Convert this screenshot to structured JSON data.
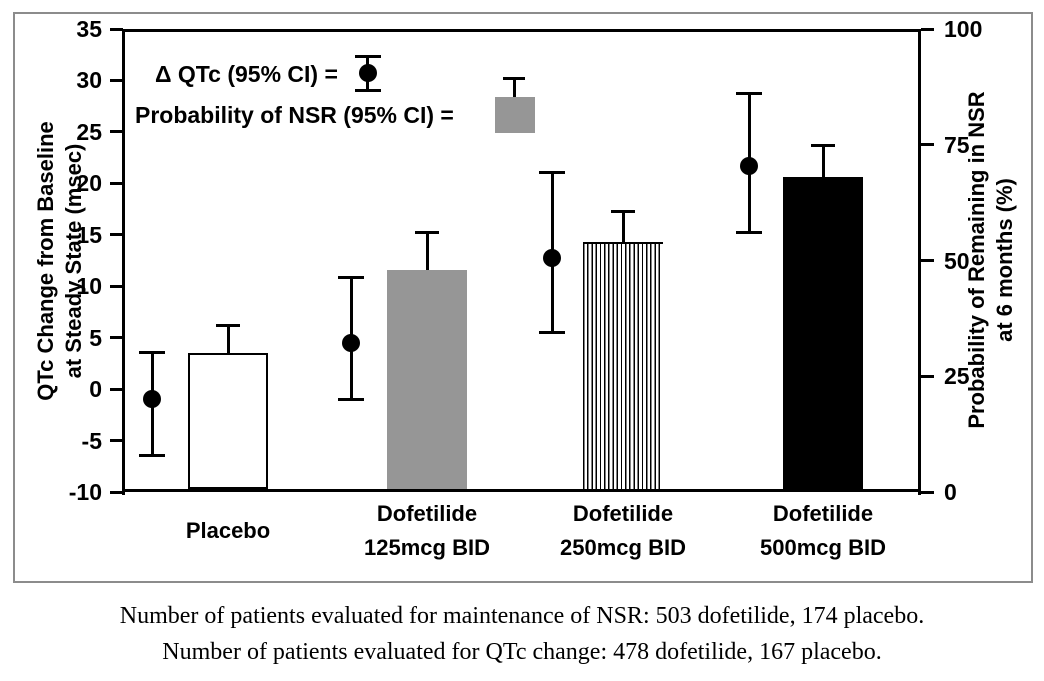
{
  "colors": {
    "bar_gray": "#969696",
    "bar_black": "#000000",
    "bar_white": "#ffffff",
    "axis": "#000000",
    "frame_border": "#8c8c8c"
  },
  "caption": {
    "line1": "Number of patients evaluated for maintenance of NSR: 503 dofetilide, 174 placebo.",
    "line2": "Number of patients evaluated for QTc change: 478 dofetilide, 167 placebo."
  },
  "chart_data": {
    "type": "bar",
    "title": "",
    "grid": false,
    "legend_position": "top-left",
    "legend": [
      {
        "label": "Δ QTc (95% CI) =",
        "symbol": "filled-circle-with-error-bar"
      },
      {
        "label": "Probability of NSR (95% CI) =",
        "symbol": "gray-bar-with-error-bar"
      }
    ],
    "left_axis": {
      "label": "QTc Change from Baseline at Steady State (msec)",
      "label_line1": "QTc Change from Baseline",
      "label_line2": "at Steady State (msec)",
      "ticks": [
        35,
        30,
        25,
        20,
        15,
        10,
        5,
        0,
        -5,
        -10
      ],
      "range": [
        -10,
        35
      ]
    },
    "right_axis": {
      "label": "Probability of Remaining in NSR at 6 months (%)",
      "label_line1": "Probability of Remaining in NSR",
      "label_line2": "at 6 months (%)",
      "ticks": [
        100,
        75,
        50,
        25,
        0
      ],
      "range": [
        0,
        100
      ]
    },
    "categories": [
      "Placebo",
      "Dofetilide 125mcg BID",
      "Dofetilide 250mcg BID",
      "Dofetilide 500mcg BID"
    ],
    "category_label_lines": [
      [
        "Placebo"
      ],
      [
        "Dofetilide",
        "125mcg BID"
      ],
      [
        "Dofetilide",
        "250mcg BID"
      ],
      [
        "Dofetilide",
        "500mcg BID"
      ]
    ],
    "series": [
      {
        "name": "Δ QTc (95% CI)",
        "type": "scatter",
        "axis": "left",
        "marker": "filled-circle",
        "values": [
          -1.0,
          4.5,
          12.7,
          21.7
        ],
        "ci_low": [
          -6.5,
          -1.0,
          5.5,
          15.2
        ],
        "ci_high": [
          3.6,
          10.8,
          21.1,
          28.7
        ]
      },
      {
        "name": "Probability of NSR (95% CI)",
        "type": "bar",
        "axis": "right",
        "values": [
          30,
          48,
          54,
          68
        ],
        "ci_high": [
          36,
          56,
          60.5,
          74.8
        ],
        "bar_fills": [
          "white",
          "solid-gray",
          "vertical-stripes",
          "solid-black"
        ]
      }
    ]
  }
}
